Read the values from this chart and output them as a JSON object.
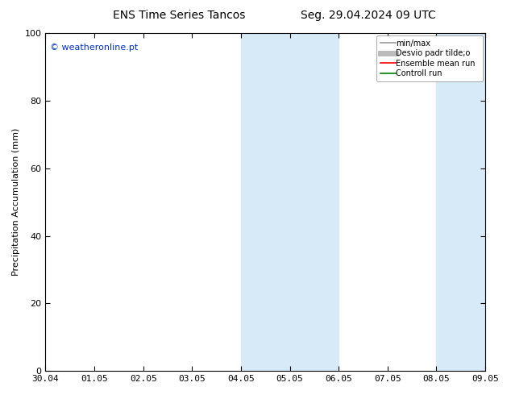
{
  "title_left": "ENS Time Series Tancos",
  "title_right": "Seg. 29.04.2024 09 UTC",
  "ylabel": "Precipitation Accumulation (mm)",
  "watermark": "© weatheronline.pt",
  "ylim": [
    0,
    100
  ],
  "yticks": [
    0,
    20,
    40,
    60,
    80,
    100
  ],
  "x_tick_labels": [
    "30.04",
    "01.05",
    "02.05",
    "03.05",
    "04.05",
    "05.05",
    "06.05",
    "07.05",
    "08.05",
    "09.05"
  ],
  "shaded_regions": [
    {
      "xstart": 4.0,
      "xend": 5.0,
      "color": "#d6eaf8"
    },
    {
      "xstart": 5.0,
      "xend": 6.0,
      "color": "#d6eaf8"
    },
    {
      "xstart": 8.0,
      "xend": 9.0,
      "color": "#d6eaf8"
    }
  ],
  "legend_entries": [
    {
      "label": "min/max",
      "color": "#999999",
      "lw": 1.2
    },
    {
      "label": "Desvio padr tilde;o",
      "color": "#bbbbbb",
      "lw": 5
    },
    {
      "label": "Ensemble mean run",
      "color": "red",
      "lw": 1.2
    },
    {
      "label": "Controll run",
      "color": "green",
      "lw": 1.2
    }
  ],
  "background_color": "#ffffff",
  "title_fontsize": 10,
  "label_fontsize": 8,
  "tick_fontsize": 8,
  "watermark_color": "#0033cc",
  "watermark_fontsize": 8
}
